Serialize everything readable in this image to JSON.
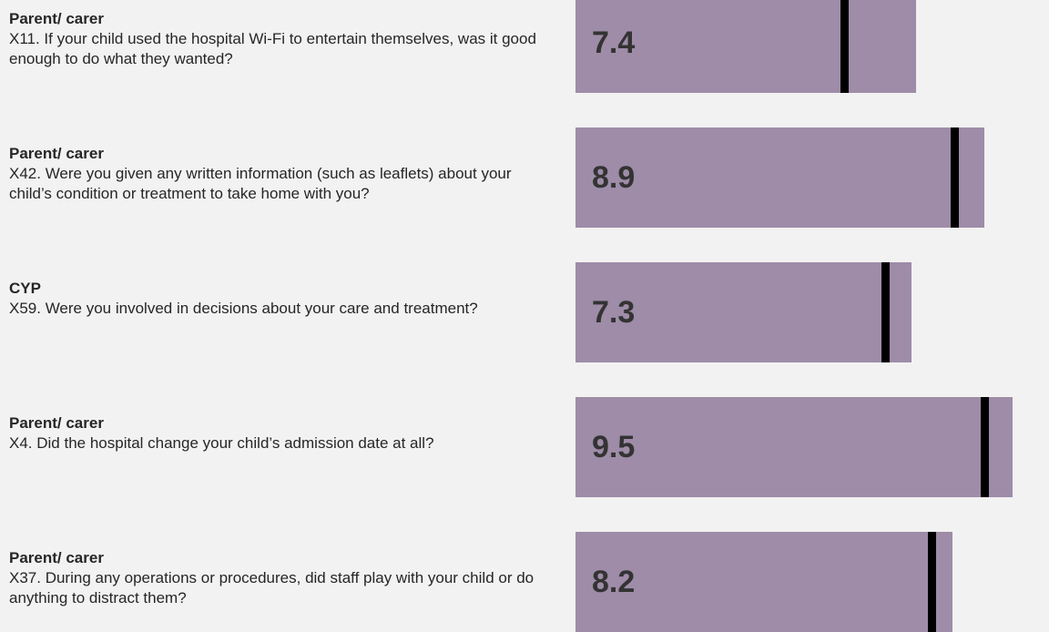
{
  "chart_data": {
    "type": "bar",
    "orientation": "horizontal",
    "groups": [
      "Parent/ carer",
      "Parent/ carer",
      "CYP",
      "Parent/ carer",
      "Parent/ carer"
    ],
    "categories": [
      "X11. If your child used the hospital Wi-Fi to entertain themselves, was it good enough to do what they wanted?",
      "X42. Were you given any written information (such as leaflets) about your child’s condition or treatment to take home with you?",
      "X59. Were you involved in decisions about your care and treatment?",
      "X4. Did the hospital change your child’s admission date at all?",
      "X37. During any operations or procedures, did staff play with your child or do anything to distract them?"
    ],
    "values": [
      7.4,
      8.9,
      7.3,
      9.5,
      8.2
    ],
    "markers": [
      5.85,
      8.25,
      6.75,
      8.9,
      7.75
    ],
    "color": "#9e8ca8",
    "marker_color": "#000000",
    "xlim": [
      0,
      10
    ]
  }
}
